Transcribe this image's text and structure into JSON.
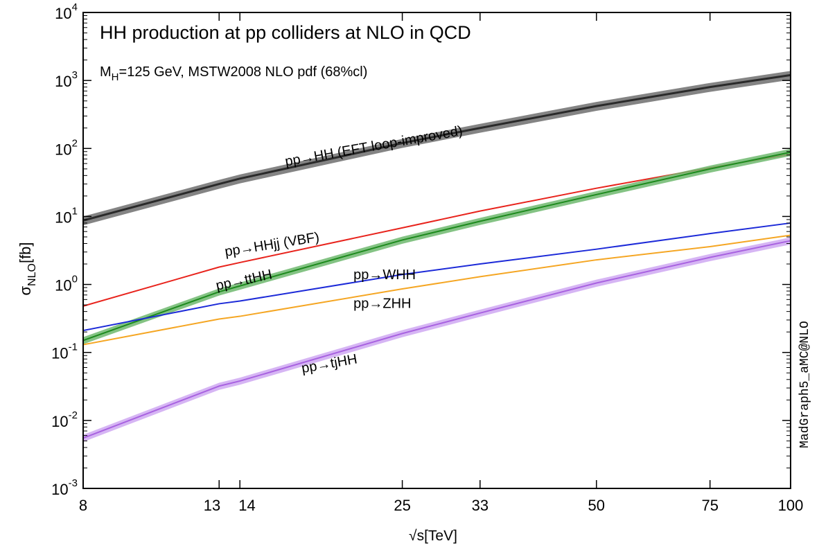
{
  "chart_data": {
    "type": "line",
    "title": "HH production at pp colliders at NLO in QCD",
    "subtitle": {
      "prefix": "M",
      "sub": "H",
      "suffix": "=125 GeV, MSTW2008 NLO pdf (68%cl)"
    },
    "xlabel": "√s[TeV]",
    "ylabel": {
      "base": "σ",
      "sub": "NLO",
      "suffix": "[fb]"
    },
    "side_label": "MadGraph5_aMC@NLO",
    "xscale": "log",
    "yscale": "log",
    "xlim": [
      8,
      100
    ],
    "ylim": [
      0.001,
      10000
    ],
    "xticks": [
      {
        "value": 8,
        "label": "8"
      },
      {
        "value": 13,
        "label": "13"
      },
      {
        "value": 14,
        "label": "14"
      },
      {
        "value": 25,
        "label": "25"
      },
      {
        "value": 33,
        "label": "33"
      },
      {
        "value": 50,
        "label": "50"
      },
      {
        "value": 75,
        "label": "75"
      },
      {
        "value": 100,
        "label": "100"
      }
    ],
    "yticks": [
      {
        "exp": -3,
        "base": "10",
        "sup": "-3"
      },
      {
        "exp": -2,
        "base": "10",
        "sup": "-2"
      },
      {
        "exp": -1,
        "base": "10",
        "sup": "-1"
      },
      {
        "exp": 0,
        "base": "10",
        "sup": "0"
      },
      {
        "exp": 1,
        "base": "10",
        "sup": "1"
      },
      {
        "exp": 2,
        "base": "10",
        "sup": "2"
      },
      {
        "exp": 3,
        "base": "10",
        "sup": "3"
      },
      {
        "exp": 4,
        "base": "10",
        "sup": "4"
      }
    ],
    "x": [
      8,
      13,
      14,
      25,
      33,
      50,
      75,
      100
    ],
    "series": [
      {
        "name": "pp→HH (EFT loop-improved)",
        "color": "#2a2a2a",
        "band": "#6e6e6e",
        "width": 3,
        "band_rel": 0.15,
        "values": [
          8.7,
          30.0,
          36.0,
          120,
          200,
          420,
          800,
          1200
        ]
      },
      {
        "name": "pp→HHjj (VBF)",
        "color": "#e8231c",
        "band": null,
        "width": 2,
        "band_rel": 0,
        "values": [
          0.48,
          1.8,
          2.1,
          6.8,
          12,
          26,
          52,
          82
        ]
      },
      {
        "name": "pp→ttHH",
        "color": "#1d8a1d",
        "band": "#6fb86f",
        "width": 2,
        "band_rel": 0.12,
        "values": [
          0.15,
          0.78,
          0.95,
          4.5,
          8.5,
          21,
          50,
          88
        ]
      },
      {
        "name": "pp→WHH",
        "color": "#1c2ad8",
        "band": null,
        "width": 2,
        "band_rel": 0,
        "values": [
          0.21,
          0.52,
          0.57,
          1.4,
          2.0,
          3.3,
          5.6,
          8.0
        ]
      },
      {
        "name": "pp→ZHH",
        "color": "#f5a623",
        "band": null,
        "width": 2,
        "band_rel": 0,
        "values": [
          0.13,
          0.31,
          0.34,
          0.86,
          1.3,
          2.3,
          3.6,
          5.3
        ]
      },
      {
        "name": "pp→tjHH",
        "color": "#a862e0",
        "band": "#cfa8f2",
        "width": 2,
        "band_rel": 0.12,
        "values": [
          0.0055,
          0.032,
          0.038,
          0.19,
          0.38,
          1.05,
          2.5,
          4.4
        ]
      }
    ],
    "annotations": [
      {
        "text": "pp→HH (EFT loop-improved)",
        "series": 0,
        "x": 16.5,
        "y": 55,
        "rotate": -10
      },
      {
        "text": "pp→HHjj (VBF)",
        "series": 1,
        "x": 13.3,
        "y": 2.6,
        "rotate": -9
      },
      {
        "text": "pp→ttHH",
        "series": 2,
        "x": 12.9,
        "y": 0.82,
        "rotate": -12
      },
      {
        "text": "pp→WHH",
        "series": 3,
        "x": 21.0,
        "y": 1.2,
        "rotate": 0
      },
      {
        "text": "pp→ZHH",
        "series": 4,
        "x": 21.0,
        "y": 0.45,
        "rotate": 0
      },
      {
        "text": "pp→tjHH",
        "series": 5,
        "x": 17.5,
        "y": 0.05,
        "rotate": -10
      }
    ],
    "legend": "none",
    "grid": false
  }
}
